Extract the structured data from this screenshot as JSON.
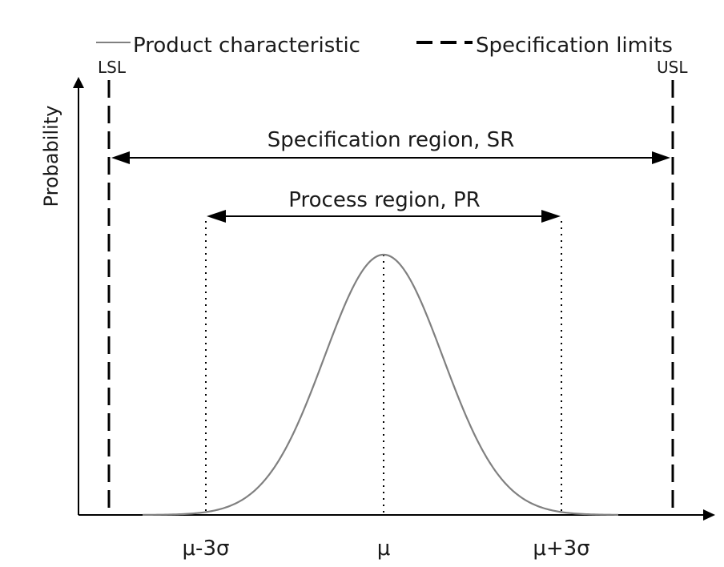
{
  "legend": {
    "product_label": "Product characteristic",
    "spec_label": "Specification limits"
  },
  "limits": {
    "lsl": "LSL",
    "usl": "USL"
  },
  "axes": {
    "ylabel": "Probability"
  },
  "regions": {
    "specification": "Specification region, SR",
    "process": "Process region, PR"
  },
  "ticks": {
    "minus3sigma": "μ-3σ",
    "mu": "μ",
    "plus3sigma": "μ+3σ"
  },
  "colors": {
    "curve": "#808080",
    "lines": "#000000"
  }
}
